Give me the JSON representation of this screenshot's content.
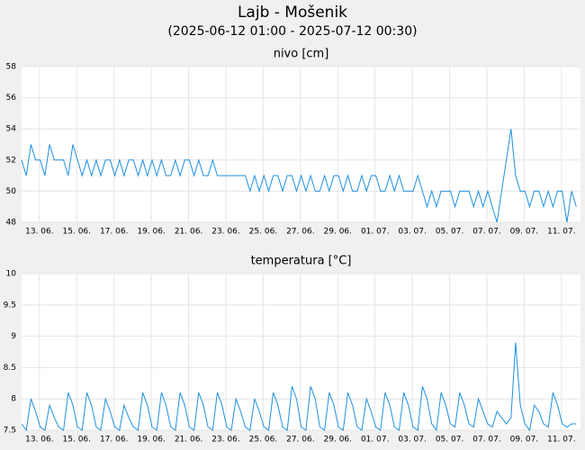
{
  "title": "Lajb - Mošenik",
  "subtitle": "(2025-06-12 01:00 - 2025-07-12 00:30)",
  "chart_data": [
    {
      "type": "line",
      "title": "nivo [cm]",
      "color": "#1e90e0",
      "grid": true,
      "xlim": [
        "2025-06-12 01:00",
        "2025-07-12 00:30"
      ],
      "xticks": [
        {
          "value": "2025-06-13 00:00",
          "label": "13. 06."
        },
        {
          "value": "2025-06-15 00:00",
          "label": "15. 06."
        },
        {
          "value": "2025-06-17 00:00",
          "label": "17. 06."
        },
        {
          "value": "2025-06-19 00:00",
          "label": "19. 06."
        },
        {
          "value": "2025-06-21 00:00",
          "label": "21. 06."
        },
        {
          "value": "2025-06-23 00:00",
          "label": "23. 06."
        },
        {
          "value": "2025-06-25 00:00",
          "label": "25. 06."
        },
        {
          "value": "2025-06-27 00:00",
          "label": "27. 06."
        },
        {
          "value": "2025-06-29 00:00",
          "label": "29. 06."
        },
        {
          "value": "2025-07-01 00:00",
          "label": "01. 07."
        },
        {
          "value": "2025-07-03 00:00",
          "label": "03. 07."
        },
        {
          "value": "2025-07-05 00:00",
          "label": "05. 07."
        },
        {
          "value": "2025-07-07 00:00",
          "label": "07. 07."
        },
        {
          "value": "2025-07-09 00:00",
          "label": "09. 07."
        },
        {
          "value": "2025-07-11 00:00",
          "label": "11. 07."
        }
      ],
      "ylim": [
        48,
        58
      ],
      "yticks": [
        48,
        50,
        52,
        54,
        56,
        58
      ],
      "x": [
        "2025-06-12 01:00",
        "2025-06-12 07:00",
        "2025-06-12 13:00",
        "2025-06-12 19:00",
        "2025-06-13 01:00",
        "2025-06-13 07:00",
        "2025-06-13 13:00",
        "2025-06-13 19:00",
        "2025-06-14 01:00",
        "2025-06-14 07:00",
        "2025-06-14 13:00",
        "2025-06-14 19:00",
        "2025-06-15 01:00",
        "2025-06-15 07:00",
        "2025-06-15 13:00",
        "2025-06-15 19:00",
        "2025-06-16 01:00",
        "2025-06-16 07:00",
        "2025-06-16 13:00",
        "2025-06-16 19:00",
        "2025-06-17 01:00",
        "2025-06-17 07:00",
        "2025-06-17 13:00",
        "2025-06-17 19:00",
        "2025-06-18 01:00",
        "2025-06-18 07:00",
        "2025-06-18 13:00",
        "2025-06-18 19:00",
        "2025-06-19 01:00",
        "2025-06-19 07:00",
        "2025-06-19 13:00",
        "2025-06-19 19:00",
        "2025-06-20 01:00",
        "2025-06-20 07:00",
        "2025-06-20 13:00",
        "2025-06-20 19:00",
        "2025-06-21 01:00",
        "2025-06-21 07:00",
        "2025-06-21 13:00",
        "2025-06-21 19:00",
        "2025-06-22 01:00",
        "2025-06-22 07:00",
        "2025-06-22 13:00",
        "2025-06-22 19:00",
        "2025-06-23 01:00",
        "2025-06-23 07:00",
        "2025-06-23 13:00",
        "2025-06-23 19:00",
        "2025-06-24 01:00",
        "2025-06-24 07:00",
        "2025-06-24 13:00",
        "2025-06-24 19:00",
        "2025-06-25 01:00",
        "2025-06-25 07:00",
        "2025-06-25 13:00",
        "2025-06-25 19:00",
        "2025-06-26 01:00",
        "2025-06-26 07:00",
        "2025-06-26 13:00",
        "2025-06-26 19:00",
        "2025-06-27 01:00",
        "2025-06-27 07:00",
        "2025-06-27 13:00",
        "2025-06-27 19:00",
        "2025-06-28 01:00",
        "2025-06-28 07:00",
        "2025-06-28 13:00",
        "2025-06-28 19:00",
        "2025-06-29 01:00",
        "2025-06-29 07:00",
        "2025-06-29 13:00",
        "2025-06-29 19:00",
        "2025-06-30 01:00",
        "2025-06-30 07:00",
        "2025-06-30 13:00",
        "2025-06-30 19:00",
        "2025-07-01 01:00",
        "2025-07-01 07:00",
        "2025-07-01 13:00",
        "2025-07-01 19:00",
        "2025-07-02 01:00",
        "2025-07-02 07:00",
        "2025-07-02 13:00",
        "2025-07-02 19:00",
        "2025-07-03 01:00",
        "2025-07-03 07:00",
        "2025-07-03 13:00",
        "2025-07-03 19:00",
        "2025-07-04 01:00",
        "2025-07-04 07:00",
        "2025-07-04 13:00",
        "2025-07-04 19:00",
        "2025-07-05 01:00",
        "2025-07-05 07:00",
        "2025-07-05 13:00",
        "2025-07-05 19:00",
        "2025-07-06 01:00",
        "2025-07-06 07:00",
        "2025-07-06 13:00",
        "2025-07-06 19:00",
        "2025-07-07 01:00",
        "2025-07-07 07:00",
        "2025-07-07 13:00",
        "2025-07-07 19:00",
        "2025-07-08 01:00",
        "2025-07-08 07:00",
        "2025-07-08 13:00",
        "2025-07-08 19:00",
        "2025-07-09 01:00",
        "2025-07-09 07:00",
        "2025-07-09 13:00",
        "2025-07-09 19:00",
        "2025-07-10 01:00",
        "2025-07-10 07:00",
        "2025-07-10 13:00",
        "2025-07-10 19:00",
        "2025-07-11 01:00",
        "2025-07-11 07:00",
        "2025-07-11 13:00",
        "2025-07-11 19:00"
      ],
      "values": [
        52,
        51,
        53,
        52,
        52,
        51,
        53,
        52,
        52,
        52,
        51,
        53,
        52,
        51,
        52,
        51,
        52,
        51,
        52,
        52,
        51,
        52,
        51,
        52,
        52,
        51,
        52,
        51,
        52,
        51,
        52,
        51,
        51,
        52,
        51,
        52,
        52,
        51,
        52,
        51,
        51,
        52,
        51,
        51,
        51,
        51,
        51,
        51,
        51,
        50,
        51,
        50,
        51,
        50,
        51,
        51,
        50,
        51,
        51,
        50,
        51,
        50,
        51,
        50,
        50,
        51,
        50,
        51,
        51,
        50,
        51,
        50,
        50,
        51,
        50,
        51,
        51,
        50,
        50,
        51,
        50,
        51,
        50,
        50,
        50,
        51,
        50,
        49,
        50,
        49,
        50,
        50,
        50,
        49,
        50,
        50,
        50,
        49,
        50,
        49,
        50,
        49,
        48,
        50,
        52,
        54,
        51,
        50,
        50,
        49,
        50,
        50,
        49,
        50,
        49,
        50,
        50,
        48,
        50,
        49
      ]
    },
    {
      "type": "line",
      "title": "temperatura [°C]",
      "color": "#1e90e0",
      "grid": true,
      "xlim": [
        "2025-06-12 01:00",
        "2025-07-12 00:30"
      ],
      "xticks": [
        {
          "value": "2025-06-13 00:00",
          "label": "13. 06."
        },
        {
          "value": "2025-06-15 00:00",
          "label": "15. 06."
        },
        {
          "value": "2025-06-17 00:00",
          "label": "17. 06."
        },
        {
          "value": "2025-06-19 00:00",
          "label": "19. 06."
        },
        {
          "value": "2025-06-21 00:00",
          "label": "21. 06."
        },
        {
          "value": "2025-06-23 00:00",
          "label": "23. 06."
        },
        {
          "value": "2025-06-25 00:00",
          "label": "25. 06."
        },
        {
          "value": "2025-06-27 00:00",
          "label": "27. 06."
        },
        {
          "value": "2025-06-29 00:00",
          "label": "29. 06."
        },
        {
          "value": "2025-07-01 00:00",
          "label": "01. 07."
        },
        {
          "value": "2025-07-03 00:00",
          "label": "03. 07."
        },
        {
          "value": "2025-07-05 00:00",
          "label": "05. 07."
        },
        {
          "value": "2025-07-07 00:00",
          "label": "07. 07."
        },
        {
          "value": "2025-07-09 00:00",
          "label": "09. 07."
        },
        {
          "value": "2025-07-11 00:00",
          "label": "11. 07."
        }
      ],
      "ylim": [
        7.5,
        10
      ],
      "yticks": [
        7.5,
        8,
        8.5,
        9,
        9.5,
        10
      ],
      "x": [
        "2025-06-12 01:00",
        "2025-06-12 07:00",
        "2025-06-12 13:00",
        "2025-06-12 19:00",
        "2025-06-13 01:00",
        "2025-06-13 07:00",
        "2025-06-13 13:00",
        "2025-06-13 19:00",
        "2025-06-14 01:00",
        "2025-06-14 07:00",
        "2025-06-14 13:00",
        "2025-06-14 19:00",
        "2025-06-15 01:00",
        "2025-06-15 07:00",
        "2025-06-15 13:00",
        "2025-06-15 19:00",
        "2025-06-16 01:00",
        "2025-06-16 07:00",
        "2025-06-16 13:00",
        "2025-06-16 19:00",
        "2025-06-17 01:00",
        "2025-06-17 07:00",
        "2025-06-17 13:00",
        "2025-06-17 19:00",
        "2025-06-18 01:00",
        "2025-06-18 07:00",
        "2025-06-18 13:00",
        "2025-06-18 19:00",
        "2025-06-19 01:00",
        "2025-06-19 07:00",
        "2025-06-19 13:00",
        "2025-06-19 19:00",
        "2025-06-20 01:00",
        "2025-06-20 07:00",
        "2025-06-20 13:00",
        "2025-06-20 19:00",
        "2025-06-21 01:00",
        "2025-06-21 07:00",
        "2025-06-21 13:00",
        "2025-06-21 19:00",
        "2025-06-22 01:00",
        "2025-06-22 07:00",
        "2025-06-22 13:00",
        "2025-06-22 19:00",
        "2025-06-23 01:00",
        "2025-06-23 07:00",
        "2025-06-23 13:00",
        "2025-06-23 19:00",
        "2025-06-24 01:00",
        "2025-06-24 07:00",
        "2025-06-24 13:00",
        "2025-06-24 19:00",
        "2025-06-25 01:00",
        "2025-06-25 07:00",
        "2025-06-25 13:00",
        "2025-06-25 19:00",
        "2025-06-26 01:00",
        "2025-06-26 07:00",
        "2025-06-26 13:00",
        "2025-06-26 19:00",
        "2025-06-27 01:00",
        "2025-06-27 07:00",
        "2025-06-27 13:00",
        "2025-06-27 19:00",
        "2025-06-28 01:00",
        "2025-06-28 07:00",
        "2025-06-28 13:00",
        "2025-06-28 19:00",
        "2025-06-29 01:00",
        "2025-06-29 07:00",
        "2025-06-29 13:00",
        "2025-06-29 19:00",
        "2025-06-30 01:00",
        "2025-06-30 07:00",
        "2025-06-30 13:00",
        "2025-06-30 19:00",
        "2025-07-01 01:00",
        "2025-07-01 07:00",
        "2025-07-01 13:00",
        "2025-07-01 19:00",
        "2025-07-02 01:00",
        "2025-07-02 07:00",
        "2025-07-02 13:00",
        "2025-07-02 19:00",
        "2025-07-03 01:00",
        "2025-07-03 07:00",
        "2025-07-03 13:00",
        "2025-07-03 19:00",
        "2025-07-04 01:00",
        "2025-07-04 07:00",
        "2025-07-04 13:00",
        "2025-07-04 19:00",
        "2025-07-05 01:00",
        "2025-07-05 07:00",
        "2025-07-05 13:00",
        "2025-07-05 19:00",
        "2025-07-06 01:00",
        "2025-07-06 07:00",
        "2025-07-06 13:00",
        "2025-07-06 19:00",
        "2025-07-07 01:00",
        "2025-07-07 07:00",
        "2025-07-07 13:00",
        "2025-07-07 19:00",
        "2025-07-08 01:00",
        "2025-07-08 07:00",
        "2025-07-08 13:00",
        "2025-07-08 19:00",
        "2025-07-09 01:00",
        "2025-07-09 07:00",
        "2025-07-09 13:00",
        "2025-07-09 19:00",
        "2025-07-10 01:00",
        "2025-07-10 07:00",
        "2025-07-10 13:00",
        "2025-07-10 19:00",
        "2025-07-11 01:00",
        "2025-07-11 07:00",
        "2025-07-11 13:00",
        "2025-07-11 19:00"
      ],
      "values": [
        7.6,
        7.5,
        8.0,
        7.8,
        7.55,
        7.5,
        7.9,
        7.7,
        7.55,
        7.5,
        8.1,
        7.9,
        7.55,
        7.5,
        8.1,
        7.9,
        7.55,
        7.5,
        8.0,
        7.8,
        7.55,
        7.5,
        7.9,
        7.7,
        7.55,
        7.5,
        8.1,
        7.9,
        7.55,
        7.5,
        8.1,
        7.9,
        7.55,
        7.5,
        8.1,
        7.9,
        7.55,
        7.5,
        8.1,
        7.9,
        7.55,
        7.5,
        8.1,
        7.9,
        7.55,
        7.5,
        8.0,
        7.8,
        7.55,
        7.5,
        8.0,
        7.8,
        7.55,
        7.5,
        8.1,
        7.9,
        7.55,
        7.5,
        8.2,
        8.0,
        7.55,
        7.5,
        8.2,
        8.0,
        7.55,
        7.5,
        8.1,
        7.9,
        7.55,
        7.5,
        8.1,
        7.9,
        7.55,
        7.5,
        8.0,
        7.8,
        7.55,
        7.5,
        8.1,
        7.9,
        7.55,
        7.5,
        8.1,
        7.9,
        7.55,
        7.5,
        8.2,
        8.0,
        7.6,
        7.5,
        8.1,
        7.9,
        7.6,
        7.55,
        8.1,
        7.9,
        7.6,
        7.55,
        8.0,
        7.8,
        7.6,
        7.55,
        7.8,
        7.7,
        7.6,
        7.7,
        8.9,
        7.9,
        7.6,
        7.5,
        7.9,
        7.8,
        7.6,
        7.55,
        8.1,
        7.9,
        7.6,
        7.55,
        7.6,
        7.6
      ]
    }
  ]
}
